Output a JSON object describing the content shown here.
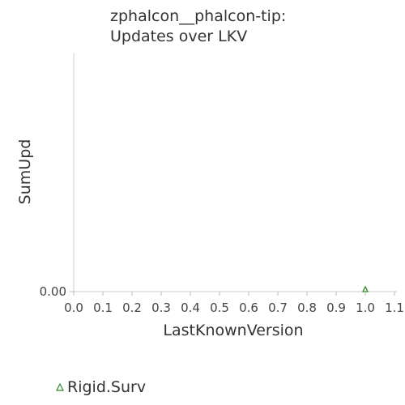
{
  "chart_data": {
    "type": "scatter",
    "title": [
      "zphalcon__phalcon-tip:",
      "Updates over LKV"
    ],
    "xlabel": "LastKnownVersion",
    "ylabel": "SumUpd",
    "xlim": [
      0.0,
      1.1
    ],
    "x_ticks": [
      "0.0",
      "0.1",
      "0.2",
      "0.3",
      "0.4",
      "0.5",
      "0.6",
      "0.7",
      "0.8",
      "0.9",
      "1.0",
      "1.1"
    ],
    "y_ticks": [
      "0.00"
    ],
    "grid": false,
    "legend_position": "bottom-left",
    "series": [
      {
        "name": "Rigid.Surv",
        "marker": "triangle-icon",
        "color": "#2e8b2e",
        "points": [
          {
            "x": 1.0,
            "y": 0.0
          }
        ]
      }
    ]
  }
}
